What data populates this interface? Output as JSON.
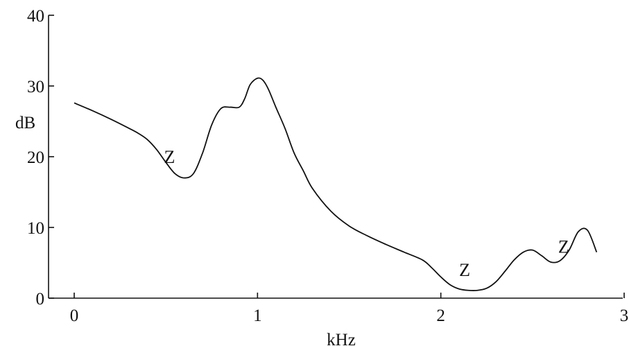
{
  "chart_data": {
    "type": "line",
    "title": "",
    "xlabel": "kHz",
    "ylabel": "dB",
    "xlim": [
      0,
      3
    ],
    "ylim": [
      0,
      40
    ],
    "x_ticks": [
      0,
      1,
      2,
      3
    ],
    "y_ticks": [
      0,
      10,
      20,
      30,
      40
    ],
    "x_tick_labels": [
      "0",
      "1",
      "2",
      "3"
    ],
    "y_tick_labels": [
      "0",
      "10",
      "20",
      "30",
      "40"
    ],
    "grid": false,
    "series": [
      {
        "x": [
          0.0,
          0.1,
          0.2,
          0.3,
          0.35,
          0.4,
          0.45,
          0.5,
          0.55,
          0.6,
          0.65,
          0.7,
          0.75,
          0.8,
          0.85,
          0.9,
          0.93,
          0.96,
          1.0,
          1.03,
          1.06,
          1.1,
          1.15,
          1.2,
          1.25,
          1.3,
          1.4,
          1.5,
          1.6,
          1.7,
          1.8,
          1.9,
          1.95,
          2.0,
          2.05,
          2.1,
          2.15,
          2.2,
          2.25,
          2.3,
          2.35,
          2.4,
          2.45,
          2.5,
          2.55,
          2.6,
          2.65,
          2.7,
          2.75,
          2.8,
          2.85
        ],
        "y": [
          27.6,
          26.5,
          25.3,
          24.0,
          23.3,
          22.4,
          21.0,
          19.2,
          17.6,
          17.0,
          17.6,
          20.5,
          24.5,
          26.8,
          27.0,
          27.0,
          28.2,
          30.2,
          31.1,
          30.8,
          29.5,
          27.0,
          24.0,
          20.5,
          18.0,
          15.5,
          12.3,
          10.2,
          8.8,
          7.6,
          6.5,
          5.4,
          4.3,
          3.0,
          1.9,
          1.3,
          1.1,
          1.1,
          1.4,
          2.3,
          3.8,
          5.4,
          6.5,
          6.8,
          6.0,
          5.1,
          5.3,
          6.8,
          9.4,
          9.6,
          6.5
        ]
      }
    ],
    "annotations": [
      {
        "text": "Z",
        "x": 0.52,
        "y": 20.0
      },
      {
        "text": "Z",
        "x": 2.13,
        "y": 4.0
      },
      {
        "text": "Z",
        "x": 2.67,
        "y": 7.3
      }
    ]
  }
}
